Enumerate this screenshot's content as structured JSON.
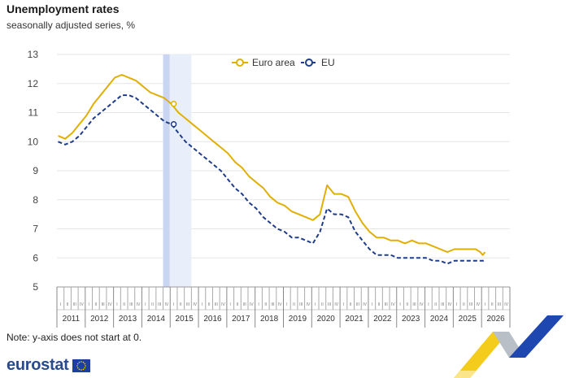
{
  "chart_data": {
    "type": "line",
    "title": "Unemployment rates",
    "subtitle": "seasonally adjusted series, %",
    "xlabel": "",
    "ylabel": "",
    "ylim": [
      5,
      13
    ],
    "yticks": [
      5,
      6,
      7,
      8,
      9,
      10,
      11,
      12,
      13
    ],
    "x_start": "2011-01",
    "x_end": "2026-12",
    "year_labels": [
      "2011",
      "2012",
      "2013",
      "2014",
      "2015",
      "2016",
      "2017",
      "2018",
      "2019",
      "2020",
      "2021",
      "2022",
      "2023",
      "2024",
      "2025",
      "2026"
    ],
    "quarter_labels": [
      "I",
      "II",
      "III",
      "IV"
    ],
    "grid": true,
    "legend_position": "top-center",
    "highlight_period": [
      "2014-10",
      "2015-09"
    ],
    "series": [
      {
        "name": "Euro area",
        "color": "#e0b000",
        "style": "solid",
        "marker": {
          "date": "2015-02",
          "value": 11.3
        },
        "points": [
          [
            "2011-01",
            10.2
          ],
          [
            "2011-04",
            10.1
          ],
          [
            "2011-07",
            10.3
          ],
          [
            "2011-10",
            10.6
          ],
          [
            "2012-01",
            10.9
          ],
          [
            "2012-04",
            11.3
          ],
          [
            "2012-07",
            11.6
          ],
          [
            "2012-10",
            11.9
          ],
          [
            "2013-01",
            12.2
          ],
          [
            "2013-04",
            12.3
          ],
          [
            "2013-07",
            12.2
          ],
          [
            "2013-10",
            12.1
          ],
          [
            "2014-01",
            11.9
          ],
          [
            "2014-04",
            11.7
          ],
          [
            "2014-07",
            11.6
          ],
          [
            "2014-10",
            11.5
          ],
          [
            "2015-01",
            11.3
          ],
          [
            "2015-04",
            11.0
          ],
          [
            "2015-07",
            10.8
          ],
          [
            "2015-10",
            10.6
          ],
          [
            "2016-01",
            10.4
          ],
          [
            "2016-04",
            10.2
          ],
          [
            "2016-07",
            10.0
          ],
          [
            "2016-10",
            9.8
          ],
          [
            "2017-01",
            9.6
          ],
          [
            "2017-04",
            9.3
          ],
          [
            "2017-07",
            9.1
          ],
          [
            "2017-10",
            8.8
          ],
          [
            "2018-01",
            8.6
          ],
          [
            "2018-04",
            8.4
          ],
          [
            "2018-07",
            8.1
          ],
          [
            "2018-10",
            7.9
          ],
          [
            "2019-01",
            7.8
          ],
          [
            "2019-04",
            7.6
          ],
          [
            "2019-07",
            7.5
          ],
          [
            "2019-10",
            7.4
          ],
          [
            "2020-01",
            7.3
          ],
          [
            "2020-04",
            7.5
          ],
          [
            "2020-07",
            8.5
          ],
          [
            "2020-10",
            8.2
          ],
          [
            "2021-01",
            8.2
          ],
          [
            "2021-04",
            8.1
          ],
          [
            "2021-07",
            7.6
          ],
          [
            "2021-10",
            7.2
          ],
          [
            "2022-01",
            6.9
          ],
          [
            "2022-04",
            6.7
          ],
          [
            "2022-07",
            6.7
          ],
          [
            "2022-10",
            6.6
          ],
          [
            "2023-01",
            6.6
          ],
          [
            "2023-04",
            6.5
          ],
          [
            "2023-07",
            6.6
          ],
          [
            "2023-10",
            6.5
          ],
          [
            "2024-01",
            6.5
          ],
          [
            "2024-04",
            6.4
          ],
          [
            "2024-07",
            6.3
          ],
          [
            "2024-10",
            6.2
          ],
          [
            "2025-01",
            6.3
          ],
          [
            "2025-04",
            6.3
          ],
          [
            "2025-07",
            6.3
          ],
          [
            "2025-10",
            6.3
          ],
          [
            "2025-12",
            6.2
          ],
          [
            "2026-01",
            6.1
          ],
          [
            "2026-02",
            6.2
          ]
        ]
      },
      {
        "name": "EU",
        "color": "#1f3d8a",
        "style": "dashed",
        "marker": {
          "date": "2015-02",
          "value": 10.6
        },
        "points": [
          [
            "2011-01",
            10.0
          ],
          [
            "2011-04",
            9.9
          ],
          [
            "2011-07",
            10.0
          ],
          [
            "2011-10",
            10.2
          ],
          [
            "2012-01",
            10.5
          ],
          [
            "2012-04",
            10.8
          ],
          [
            "2012-07",
            11.0
          ],
          [
            "2012-10",
            11.2
          ],
          [
            "2013-01",
            11.4
          ],
          [
            "2013-04",
            11.6
          ],
          [
            "2013-07",
            11.6
          ],
          [
            "2013-10",
            11.5
          ],
          [
            "2014-01",
            11.3
          ],
          [
            "2014-04",
            11.1
          ],
          [
            "2014-07",
            10.9
          ],
          [
            "2014-10",
            10.7
          ],
          [
            "2015-01",
            10.6
          ],
          [
            "2015-04",
            10.3
          ],
          [
            "2015-07",
            10.0
          ],
          [
            "2015-10",
            9.8
          ],
          [
            "2016-01",
            9.6
          ],
          [
            "2016-04",
            9.4
          ],
          [
            "2016-07",
            9.2
          ],
          [
            "2016-10",
            9.0
          ],
          [
            "2017-01",
            8.7
          ],
          [
            "2017-04",
            8.4
          ],
          [
            "2017-07",
            8.2
          ],
          [
            "2017-10",
            7.9
          ],
          [
            "2018-01",
            7.7
          ],
          [
            "2018-04",
            7.4
          ],
          [
            "2018-07",
            7.2
          ],
          [
            "2018-10",
            7.0
          ],
          [
            "2019-01",
            6.9
          ],
          [
            "2019-04",
            6.7
          ],
          [
            "2019-07",
            6.7
          ],
          [
            "2019-10",
            6.6
          ],
          [
            "2020-01",
            6.5
          ],
          [
            "2020-04",
            6.9
          ],
          [
            "2020-07",
            7.7
          ],
          [
            "2020-10",
            7.5
          ],
          [
            "2021-01",
            7.5
          ],
          [
            "2021-04",
            7.4
          ],
          [
            "2021-07",
            6.9
          ],
          [
            "2021-10",
            6.6
          ],
          [
            "2022-01",
            6.3
          ],
          [
            "2022-04",
            6.1
          ],
          [
            "2022-07",
            6.1
          ],
          [
            "2022-10",
            6.1
          ],
          [
            "2023-01",
            6.0
          ],
          [
            "2023-04",
            6.0
          ],
          [
            "2023-07",
            6.0
          ],
          [
            "2023-10",
            6.0
          ],
          [
            "2024-01",
            6.0
          ],
          [
            "2024-04",
            5.9
          ],
          [
            "2024-07",
            5.9
          ],
          [
            "2024-10",
            5.8
          ],
          [
            "2025-01",
            5.9
          ],
          [
            "2025-04",
            5.9
          ],
          [
            "2025-07",
            5.9
          ],
          [
            "2025-10",
            5.9
          ],
          [
            "2026-02",
            5.9
          ]
        ]
      }
    ]
  },
  "note": "Note: y-axis does not start at 0.",
  "logo": {
    "text": "eurostat",
    "flag_color": "#1f3fa0",
    "star_color": "#ffdd00"
  }
}
